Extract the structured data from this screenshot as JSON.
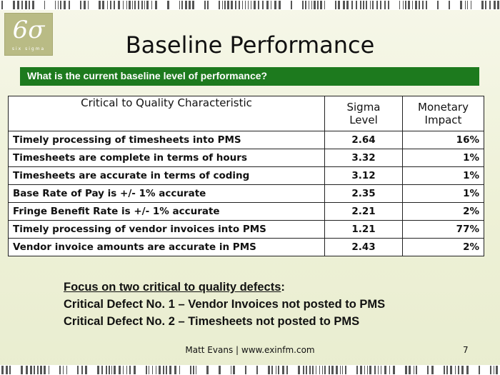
{
  "logo": {
    "symbol": "6σ",
    "caption": "six sigma"
  },
  "title": "Baseline Performance",
  "banner": "What is the current baseline level of performance?",
  "table": {
    "headers": {
      "characteristic": "Critical to Quality Characteristic",
      "sigma_line1": "Sigma",
      "sigma_line2": "Level",
      "impact_line1": "Monetary",
      "impact_line2": "Impact"
    },
    "rows": [
      {
        "characteristic": "Timely processing of timesheets into PMS",
        "sigma": "2.64",
        "impact": "16%"
      },
      {
        "characteristic": "Timesheets are complete in terms of hours",
        "sigma": "3.32",
        "impact": "1%"
      },
      {
        "characteristic": "Timesheets are accurate in terms of coding",
        "sigma": "3.12",
        "impact": "1%"
      },
      {
        "characteristic": "Base Rate of Pay is +/- 1% accurate",
        "sigma": "2.35",
        "impact": "1%"
      },
      {
        "characteristic": "Fringe Benefit Rate is +/- 1% accurate",
        "sigma": "2.21",
        "impact": "2%"
      },
      {
        "characteristic": "Timely processing of vendor invoices into PMS",
        "sigma": "1.21",
        "impact": "77%"
      },
      {
        "characteristic": "Vendor invoice amounts are accurate in PMS",
        "sigma": "2.43",
        "impact": "2%"
      }
    ]
  },
  "focus": {
    "heading": "Focus on two critical to quality defects",
    "heading_suffix": ":",
    "defect1": "Critical Defect No. 1 – Vendor Invoices not posted to PMS",
    "defect2": "Critical Defect No. 2 – Timesheets not posted to PMS"
  },
  "footer": {
    "text": "Matt Evans | www.exinfm.com",
    "page": "7"
  },
  "colors": {
    "banner": "#1d7a1e",
    "background": "#eef1d7",
    "logo": "#b9bb85"
  }
}
